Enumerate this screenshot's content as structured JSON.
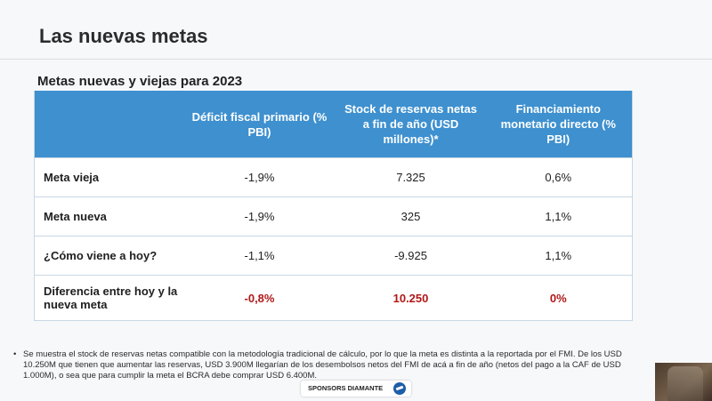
{
  "slide": {
    "title": "Las nuevas metas",
    "subtitle": "Metas nuevas y viejas para 2023"
  },
  "table": {
    "headers": [
      "",
      "Déficit fiscal primario (% PBI)",
      "Stock de reservas netas a fin de año (USD millones)*",
      "Financiamiento monetario directo (% PBI)"
    ],
    "rows": [
      {
        "label": "Meta vieja",
        "values": [
          "-1,9%",
          "7.325",
          "0,6%"
        ]
      },
      {
        "label": "Meta nueva",
        "values": [
          "-1,9%",
          "325",
          "1,1%"
        ]
      },
      {
        "label": "¿Cómo viene a hoy?",
        "values": [
          "-1,1%",
          "-9.925",
          "1,1%"
        ]
      },
      {
        "label": "Diferencia entre hoy y la nueva meta",
        "values": [
          "-0,8%",
          "10.250",
          "0%"
        ]
      }
    ]
  },
  "footnote": {
    "bullet": "•",
    "text": "Se muestra el stock de reservas netas compatible con la metodología tradicional de cálculo, por lo que la meta es distinta a la reportada por el FMI. De los USD 10.250M que tienen que aumentar las reservas, USD 3.900M llegarían de los desembolsos netos del FMI de acá a fin de año (netos del pago a la CAF de USD 1.000M), o sea que para cumplir la meta el BCRA debe comprar USD 6.400M."
  },
  "sponsor": {
    "label": "SPONSORS DIAMANTE"
  },
  "colors": {
    "header_blue": "#3e90cf",
    "highlight_red": "#b01818"
  }
}
